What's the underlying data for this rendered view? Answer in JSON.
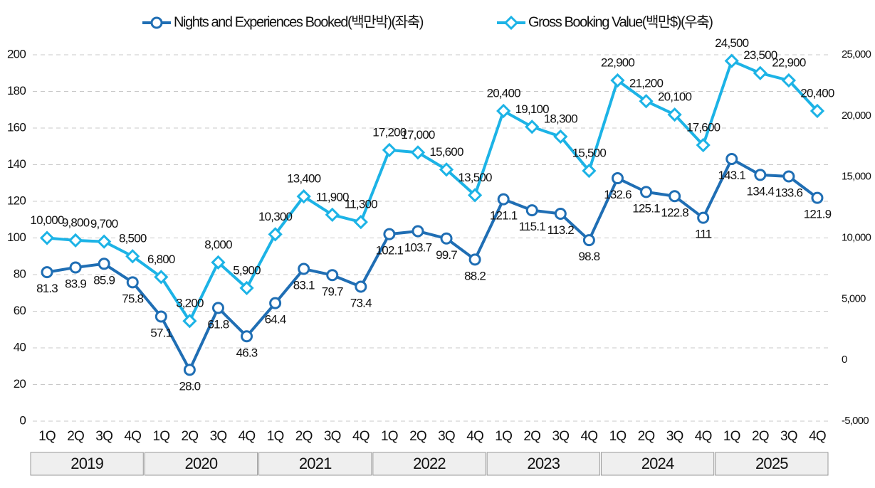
{
  "chart_data": {
    "type": "line",
    "categories": [
      "1Q",
      "2Q",
      "3Q",
      "4Q",
      "1Q",
      "2Q",
      "3Q",
      "4Q",
      "1Q",
      "2Q",
      "3Q",
      "4Q",
      "1Q",
      "2Q",
      "3Q",
      "4Q",
      "1Q",
      "2Q",
      "3Q",
      "4Q",
      "1Q",
      "2Q",
      "3Q",
      "4Q",
      "1Q",
      "2Q",
      "3Q",
      "4Q"
    ],
    "years": [
      "2019",
      "2020",
      "2021",
      "2022",
      "2023",
      "2024",
      "2025"
    ],
    "series": [
      {
        "name": "Nights and Experiences Booked(백만박)(좌축)",
        "color": "#1f6eb4",
        "marker": "circle",
        "values": [
          81.3,
          83.9,
          85.9,
          75.8,
          57.1,
          28.0,
          61.8,
          46.3,
          64.4,
          83.1,
          79.7,
          73.4,
          102.1,
          103.7,
          99.7,
          88.2,
          121.1,
          115.1,
          113.2,
          98.8,
          132.6,
          125.1,
          122.8,
          111,
          143.1,
          134.4,
          133.6,
          121.9
        ],
        "value_labels": [
          "81.3",
          "83.9",
          "85.9",
          "75.8",
          "57.1",
          "28.0",
          "61.8",
          "46.3",
          "64.4",
          "83.1",
          "79.7",
          "73.4",
          "102.1",
          "103.7",
          "99.7",
          "88.2",
          "121.1",
          "115.1",
          "113.2",
          "98.8",
          "132.6",
          "125.1",
          "122.8",
          "111",
          "143.1",
          "134.4",
          "133.6",
          "121.9"
        ]
      },
      {
        "name": "Gross Booking Value(백만$)(우축)",
        "color": "#1cb3e6",
        "marker": "diamond",
        "axis": "y2",
        "values": [
          10000,
          9800,
          9700,
          8500,
          6800,
          3200,
          8000,
          5900,
          10300,
          13400,
          11900,
          11300,
          17200,
          17000,
          15600,
          13500,
          20400,
          19100,
          18300,
          15500,
          22900,
          21200,
          20100,
          17600,
          24500,
          23500,
          22900,
          20400
        ],
        "value_labels": [
          "10,000",
          "9,800",
          "9,700",
          "8,500",
          "6,800",
          "3,200",
          "8,000",
          "5,900",
          "10,300",
          "13,400",
          "11,900",
          "11,300",
          "17,200",
          "17,000",
          "15,600",
          "13,500",
          "20,400",
          "19,100",
          "18,300",
          "15,500",
          "22,900",
          "21,200",
          "20,100",
          "17,600",
          "24,500",
          "23,500",
          "22,900",
          "20,400"
        ]
      }
    ],
    "ylim": [
      0,
      200
    ],
    "yticks": [
      0,
      20,
      40,
      60,
      80,
      100,
      120,
      140,
      160,
      180,
      200
    ],
    "y2lim": [
      -5000,
      25000
    ],
    "y2ticks": [
      {
        "value": -5000,
        "label": "-5,000"
      },
      0,
      {
        "value": 5000,
        "label": "5,000"
      },
      {
        "value": 10000,
        "label": "10,000"
      },
      {
        "value": 15000,
        "label": "15,000"
      },
      {
        "value": 20000,
        "label": "20,000"
      },
      {
        "value": 25000,
        "label": "25,000"
      }
    ],
    "grid": true
  }
}
